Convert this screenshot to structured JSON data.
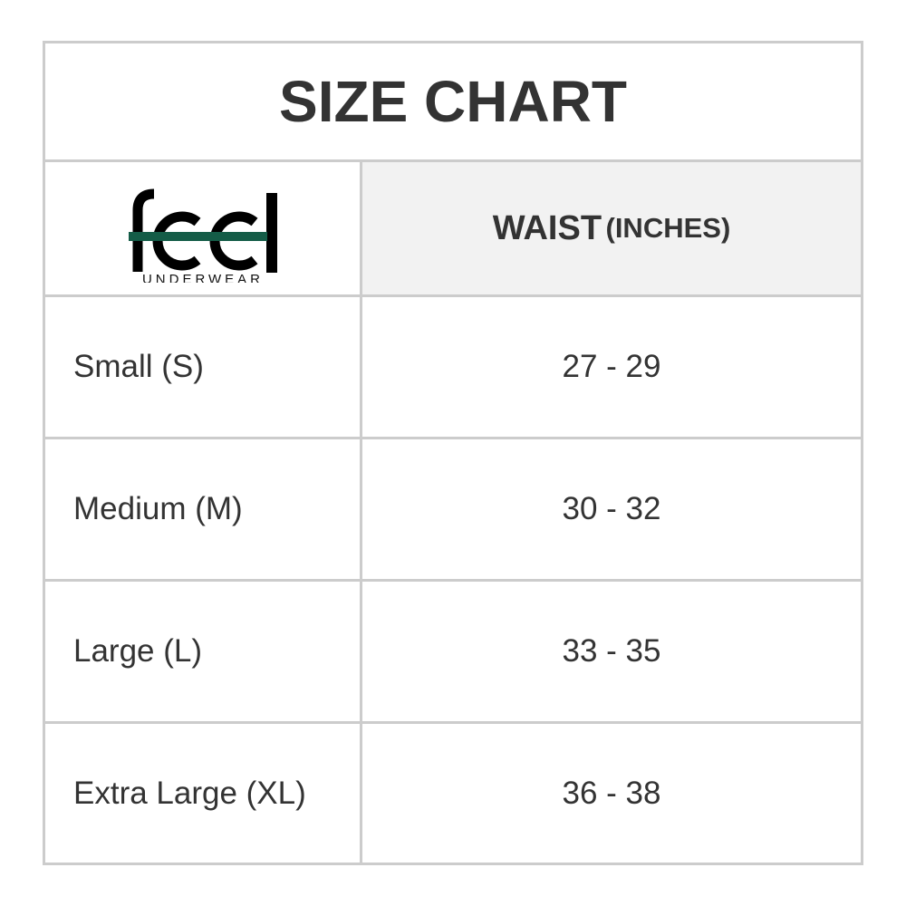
{
  "title": "SIZE CHART",
  "logo": {
    "word": "feel",
    "tagline": "UNDERWEAR",
    "accent_color": "#145c47"
  },
  "header": {
    "waist": "WAIST",
    "unit": "(INCHES)"
  },
  "rows": [
    {
      "size": "Small (S)",
      "waist": "27 - 29"
    },
    {
      "size": "Medium (M)",
      "waist": "30 - 32"
    },
    {
      "size": "Large (L)",
      "waist": "33 - 35"
    },
    {
      "size": "Extra Large (XL)",
      "waist": "36 - 38"
    }
  ]
}
